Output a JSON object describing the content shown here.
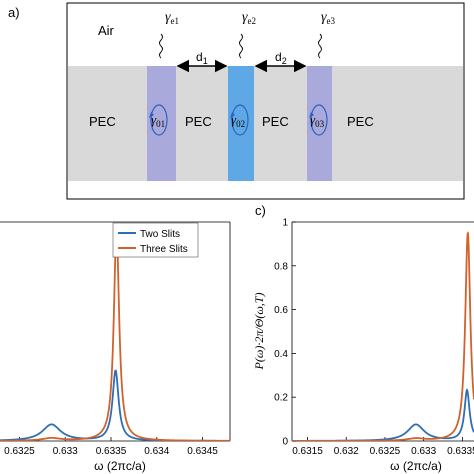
{
  "panel_a": {
    "label": "a)",
    "air_label": "Air",
    "pec_labels": [
      "PEC",
      "PEC",
      "PEC",
      "PEC"
    ],
    "gap_labels": [
      "d",
      "d"
    ],
    "gap_subs": [
      "1",
      "2"
    ],
    "gamma_e": [
      {
        "main": "γ",
        "sub": "e1"
      },
      {
        "main": "γ",
        "sub": "e2"
      },
      {
        "main": "γ",
        "sub": "e3"
      }
    ],
    "gamma_0": [
      {
        "main": "γ",
        "sub": "01"
      },
      {
        "main": "γ",
        "sub": "02"
      },
      {
        "main": "γ",
        "sub": "03"
      }
    ],
    "colors": {
      "pec": "#d9d9d9",
      "slit_side": "#a9a9dc",
      "slit_center": "#5fa8e6",
      "arrow": "#2a62c4"
    }
  },
  "panel_c": {
    "label": "c)"
  },
  "chart_data": [
    {
      "type": "line",
      "title": "",
      "xlabel": "ω (2πc/a)",
      "ylabel": "",
      "xlim": [
        0.6322,
        0.6348
      ],
      "ylim": [
        0,
        1
      ],
      "x_ticks": [
        "0.6325",
        "0.633",
        "0.6335",
        "0.634",
        "0.6345"
      ],
      "x_tick_values": [
        0.6325,
        0.633,
        0.6335,
        0.634,
        0.6345
      ],
      "legend": [
        "Two Slits",
        "Three Slits"
      ],
      "legend_position": "top-right",
      "series": [
        {
          "name": "Two Slits",
          "color": "#2c6fb5",
          "peaks": [
            {
              "center": 0.63285,
              "height": 0.075,
              "width": 0.00012
            },
            {
              "center": 0.63355,
              "height": 0.32,
              "width": 4e-05
            }
          ]
        },
        {
          "name": "Three Slits",
          "color": "#d2622b",
          "peaks": [
            {
              "center": 0.63285,
              "height": 0.012,
              "width": 0.00012
            },
            {
              "center": 0.63356,
              "height": 0.97,
              "width": 3.5e-05
            }
          ]
        }
      ]
    },
    {
      "type": "line",
      "title": "",
      "xlabel": "ω (2πc/a)",
      "ylabel": "P(ω)·2π/Θ(ω,T)",
      "xlim": [
        0.6313,
        0.63365
      ],
      "ylim": [
        0,
        1
      ],
      "y_ticks": [
        "0",
        "0.2",
        "0.4",
        "0.6",
        "0.8",
        "1"
      ],
      "y_tick_values": [
        0,
        0.2,
        0.4,
        0.6,
        0.8,
        1
      ],
      "x_ticks": [
        "0.6315",
        "0.632",
        "0.6325",
        "0.633",
        "0.6335"
      ],
      "x_tick_values": [
        0.6315,
        0.632,
        0.6325,
        0.633,
        0.6335
      ],
      "series": [
        {
          "name": "Two Slits",
          "color": "#2c6fb5",
          "peaks": [
            {
              "center": 0.6329,
              "height": 0.075,
              "width": 0.00013
            },
            {
              "center": 0.63356,
              "height": 0.23,
              "width": 4e-05
            }
          ]
        },
        {
          "name": "Three Slits",
          "color": "#d2622b",
          "peaks": [
            {
              "center": 0.6329,
              "height": 0.01,
              "width": 0.00013
            },
            {
              "center": 0.63357,
              "height": 0.95,
              "width": 4e-05
            }
          ]
        }
      ]
    }
  ]
}
